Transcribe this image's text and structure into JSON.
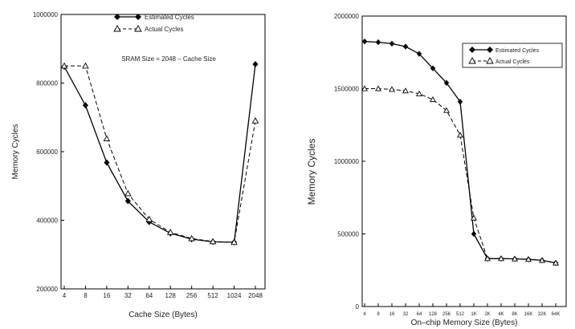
{
  "chart_data": [
    {
      "type": "line",
      "categories": [
        "4",
        "8",
        "16",
        "32",
        "64",
        "128",
        "256",
        "512",
        "1024",
        "2048"
      ],
      "series": [
        {
          "name": "Estimated Cycles",
          "values": [
            848000,
            735000,
            568000,
            456000,
            395000,
            362000,
            345000,
            337000,
            336000,
            855000
          ]
        },
        {
          "name": "Actual Cycles",
          "values": [
            850000,
            850000,
            638000,
            478000,
            403000,
            365000,
            347000,
            338000,
            336000,
            690000
          ]
        }
      ],
      "xlabel": "Cache Size (Bytes)",
      "ylabel": "Memory Cycles",
      "ylim": [
        200000,
        1000000
      ],
      "yticks": [
        "200000",
        "400000",
        "600000",
        "800000",
        "1000000"
      ],
      "annotation": "SRAM Size = 2048 – Cache Size",
      "legend_position": "top-center",
      "grid": false
    },
    {
      "type": "line",
      "categories": [
        "4",
        "8",
        "16",
        "32",
        "64",
        "128",
        "256",
        "512",
        "1K",
        "2K",
        "4K",
        "8K",
        "16K",
        "32K",
        "64K"
      ],
      "series": [
        {
          "name": "Estimated Cycles",
          "values": [
            1825000,
            1820000,
            1810000,
            1790000,
            1740000,
            1640000,
            1540000,
            1410000,
            500000,
            330000,
            330000,
            328000,
            325000,
            318000,
            300000
          ]
        },
        {
          "name": "Actual Cycles",
          "values": [
            1500000,
            1500000,
            1495000,
            1485000,
            1465000,
            1425000,
            1350000,
            1180000,
            610000,
            330000,
            330000,
            328000,
            325000,
            318000,
            300000
          ]
        }
      ],
      "xlabel": "On–chip Memory Size (Bytes)",
      "ylabel": "Memory Cycles",
      "ylim": [
        0,
        2000000
      ],
      "yticks": [
        "0",
        "500000",
        "1000000",
        "1500000",
        "2000000"
      ],
      "legend_position": "top-right",
      "grid": false
    }
  ]
}
